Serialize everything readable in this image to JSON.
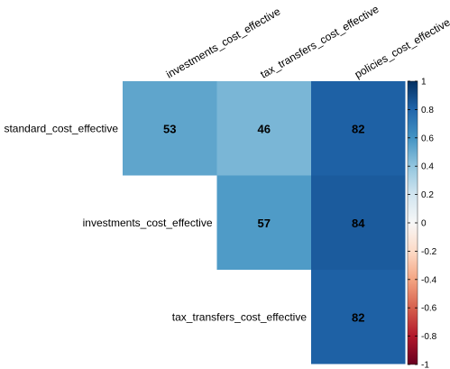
{
  "chart_data": {
    "type": "heatmap",
    "title": "",
    "columns": [
      "investments_cost_effective",
      "tax_transfers_cost_effective",
      "policies_cost_effective"
    ],
    "rows": [
      "standard_cost_effective",
      "investments_cost_effective",
      "tax_transfers_cost_effective"
    ],
    "cells": [
      {
        "row": 0,
        "col": 0,
        "value": 0.53,
        "label": "53"
      },
      {
        "row": 0,
        "col": 1,
        "value": 0.46,
        "label": "46"
      },
      {
        "row": 0,
        "col": 2,
        "value": 0.82,
        "label": "82"
      },
      {
        "row": 1,
        "col": 1,
        "value": 0.57,
        "label": "57"
      },
      {
        "row": 1,
        "col": 2,
        "value": 0.84,
        "label": "84"
      },
      {
        "row": 2,
        "col": 2,
        "value": 0.82,
        "label": "82"
      }
    ],
    "colorbar": {
      "range": [
        -1,
        1
      ],
      "ticks": [
        "1",
        "0.8",
        "0.6",
        "0.4",
        "0.2",
        "0",
        "-0.2",
        "-0.4",
        "-0.6",
        "-0.8",
        "-1"
      ],
      "low_color": "#67001f",
      "mid_color": "#f7f7f7",
      "high_color": "#053061"
    }
  }
}
